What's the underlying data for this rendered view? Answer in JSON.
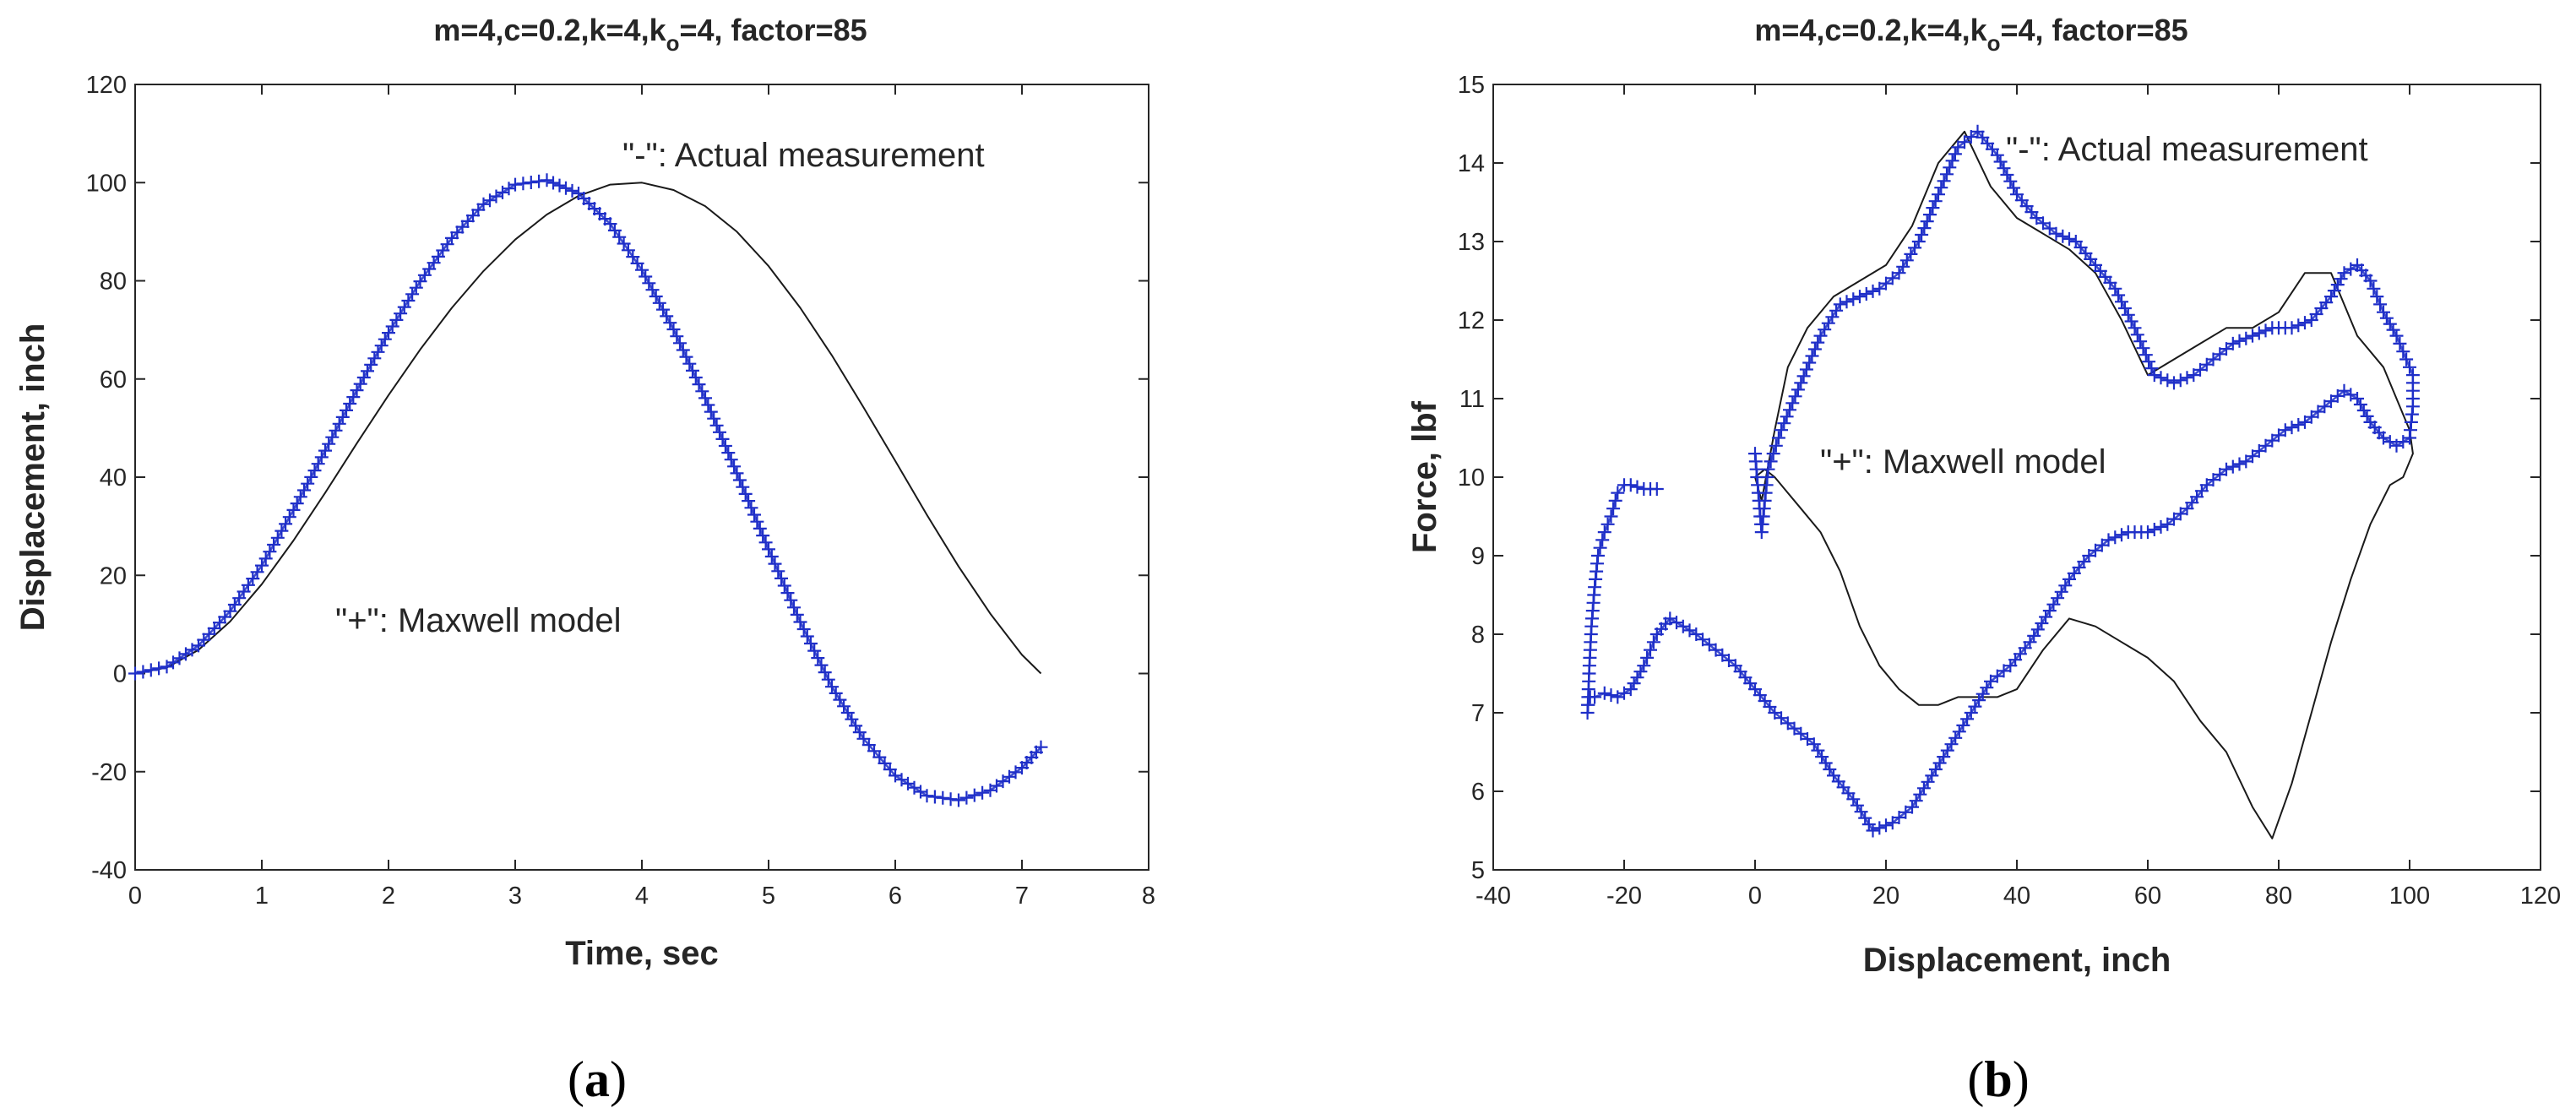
{
  "colors": {
    "measurement": "#1a1a1a",
    "model": "#1f2fc8",
    "axis": "#262626"
  },
  "chart_data": [
    {
      "id": "a",
      "type": "line",
      "panel_label": "a",
      "title": "m=4,c=0.2,k=4,k",
      "title_sub": "o",
      "title_rest": "=4, factor=85",
      "xlabel": "Time, sec",
      "ylabel": "Displacement, inch",
      "xlim": [
        0,
        8
      ],
      "ylim": [
        -40,
        120
      ],
      "xticks": [
        0,
        1,
        2,
        3,
        4,
        5,
        6,
        7,
        8
      ],
      "yticks": [
        -40,
        -20,
        0,
        20,
        40,
        60,
        80,
        100,
        120
      ],
      "annotations": [
        {
          "text": "\"-\": Actual measurement",
          "x": 3.9,
          "y": 104
        },
        {
          "text": "\"+\": Maxwell model",
          "x": 1.6,
          "y": 9
        }
      ],
      "series": [
        {
          "name": "Actual measurement",
          "style": "line",
          "x": [
            0,
            0.25,
            0.5,
            0.75,
            1.0,
            1.25,
            1.5,
            1.75,
            2.0,
            2.25,
            2.5,
            2.75,
            3.0,
            3.25,
            3.5,
            3.75,
            4.0,
            4.25,
            4.5,
            4.75,
            5.0,
            5.25,
            5.5,
            5.75,
            6.0,
            6.25,
            6.5,
            6.75,
            7.0,
            7.15
          ],
          "y": [
            0,
            1.2,
            4.8,
            10.6,
            18.2,
            27.1,
            36.8,
            46.9,
            56.7,
            66.0,
            74.5,
            82.0,
            88.4,
            93.5,
            97.3,
            99.6,
            100,
            98.5,
            95.2,
            90.0,
            83.0,
            74.5,
            64.8,
            54.2,
            43.3,
            32.3,
            21.8,
            12.2,
            3.8,
            0
          ]
        },
        {
          "name": "Maxwell model",
          "style": "plus",
          "x": [
            0,
            0.25,
            0.5,
            0.75,
            1.0,
            1.25,
            1.5,
            1.75,
            2.0,
            2.25,
            2.5,
            2.75,
            3.0,
            3.25,
            3.5,
            3.75,
            4.0,
            4.25,
            4.5,
            4.75,
            5.0,
            5.25,
            5.5,
            5.75,
            6.0,
            6.25,
            6.5,
            6.75,
            7.0,
            7.15
          ],
          "y": [
            0,
            1.4,
            5.7,
            12.7,
            22.0,
            33.3,
            45.4,
            57.7,
            69.4,
            79.9,
            88.7,
            95.6,
            99.6,
            100.5,
            97.8,
            91.6,
            82.2,
            70.1,
            56.1,
            40.8,
            25.3,
            10.5,
            -2.7,
            -13.3,
            -20.8,
            -24.9,
            -25.8,
            -23.8,
            -19.2,
            -15.0
          ]
        }
      ]
    },
    {
      "id": "b",
      "type": "line",
      "panel_label": "b",
      "title": "m=4,c=0.2,k=4,k",
      "title_sub": "o",
      "title_rest": "=4, factor=85",
      "xlabel": "Displacement, inch",
      "ylabel": "Force, lbf",
      "xlim": [
        -40,
        120
      ],
      "ylim": [
        5,
        15
      ],
      "xticks": [
        -40,
        -20,
        0,
        20,
        40,
        60,
        80,
        100,
        120
      ],
      "yticks": [
        5,
        6,
        7,
        8,
        9,
        10,
        11,
        12,
        13,
        14,
        15
      ],
      "annotations": [
        {
          "text": "\"-\": Actual measurement",
          "x": 40,
          "y": 14.0
        },
        {
          "text": "\"+\": Maxwell model",
          "x": 9,
          "y": 10.0
        }
      ],
      "series": [
        {
          "name": "Actual measurement",
          "style": "line",
          "x": [
            0,
            1,
            3,
            5,
            8,
            12,
            16,
            20,
            24,
            28,
            32,
            36,
            40,
            44,
            48,
            52,
            56,
            60,
            64,
            68,
            72,
            76,
            80,
            84,
            88,
            92,
            96,
            98,
            100,
            100.5,
            99,
            97,
            94,
            91,
            88,
            85,
            82,
            79,
            76,
            72,
            68,
            64,
            60,
            56,
            52,
            48,
            44,
            40,
            37,
            34,
            31,
            28,
            25,
            22,
            19,
            16,
            13,
            10,
            7,
            5,
            3,
            1.5,
            0
          ],
          "y": [
            10.0,
            9.7,
            10.6,
            11.4,
            11.9,
            12.3,
            12.5,
            12.7,
            13.2,
            14.0,
            14.4,
            13.7,
            13.3,
            13.1,
            12.9,
            12.6,
            12.0,
            11.3,
            11.5,
            11.7,
            11.9,
            11.9,
            12.1,
            12.6,
            12.6,
            11.8,
            11.4,
            11.0,
            10.6,
            10.3,
            10.0,
            9.9,
            9.4,
            8.7,
            7.9,
            7.0,
            6.1,
            5.4,
            5.8,
            6.5,
            6.9,
            7.4,
            7.7,
            7.9,
            8.1,
            8.2,
            7.8,
            7.3,
            7.2,
            7.2,
            7.2,
            7.1,
            7.1,
            7.3,
            7.6,
            8.1,
            8.8,
            9.3,
            9.6,
            9.8,
            10.0,
            10.1,
            10.0
          ]
        },
        {
          "name": "Maxwell model",
          "style": "plus",
          "x": [
            -15,
            -17,
            -19,
            -20,
            -21,
            -22,
            -23,
            -24,
            -24.5,
            -25,
            -25.3,
            -25.5,
            -25.6,
            -25.5,
            -25.2,
            -24.5,
            -23,
            -21,
            -19,
            -17,
            -15,
            -13,
            -11,
            -9,
            -6,
            -3,
            0,
            3,
            6,
            9,
            12,
            15,
            18,
            21,
            24,
            27,
            30,
            33,
            36,
            39,
            42,
            45,
            48,
            51,
            54,
            57,
            60,
            63,
            66,
            69,
            72,
            75,
            78,
            81,
            84,
            87,
            90,
            92,
            94,
            96,
            98,
            100,
            100.5,
            100.5,
            99.5,
            98,
            96,
            94,
            92,
            90,
            88,
            85,
            82,
            79,
            76,
            73,
            70,
            67,
            64,
            61,
            58,
            55,
            52,
            49,
            46,
            43,
            40,
            37,
            34,
            31,
            28,
            25,
            22,
            19,
            16,
            13,
            10,
            7,
            4,
            2,
            1,
            0
          ],
          "y": [
            9.85,
            9.85,
            9.9,
            9.9,
            9.8,
            9.5,
            9.3,
            9.0,
            8.6,
            8.1,
            7.6,
            7.2,
            7.0,
            7.1,
            7.2,
            7.2,
            7.25,
            7.2,
            7.3,
            7.6,
            8.0,
            8.2,
            8.1,
            8.0,
            7.8,
            7.6,
            7.3,
            7.0,
            6.8,
            6.6,
            6.2,
            5.9,
            5.5,
            5.6,
            5.8,
            6.2,
            6.6,
            7.0,
            7.4,
            7.6,
            7.9,
            8.3,
            8.7,
            9.0,
            9.2,
            9.3,
            9.3,
            9.4,
            9.6,
            9.9,
            10.1,
            10.2,
            10.4,
            10.6,
            10.7,
            10.9,
            11.1,
            11.0,
            10.7,
            10.5,
            10.4,
            10.5,
            10.9,
            11.3,
            11.5,
            11.8,
            12.1,
            12.5,
            12.7,
            12.6,
            12.3,
            12.0,
            11.9,
            11.9,
            11.8,
            11.7,
            11.5,
            11.3,
            11.2,
            11.3,
            11.9,
            12.4,
            12.7,
            13.0,
            13.1,
            13.3,
            13.6,
            14.1,
            14.4,
            14.2,
            13.6,
            13.0,
            12.6,
            12.4,
            12.3,
            12.2,
            11.8,
            11.2,
            10.6,
            10.1,
            9.3,
            10.3
          ]
        }
      ]
    }
  ]
}
